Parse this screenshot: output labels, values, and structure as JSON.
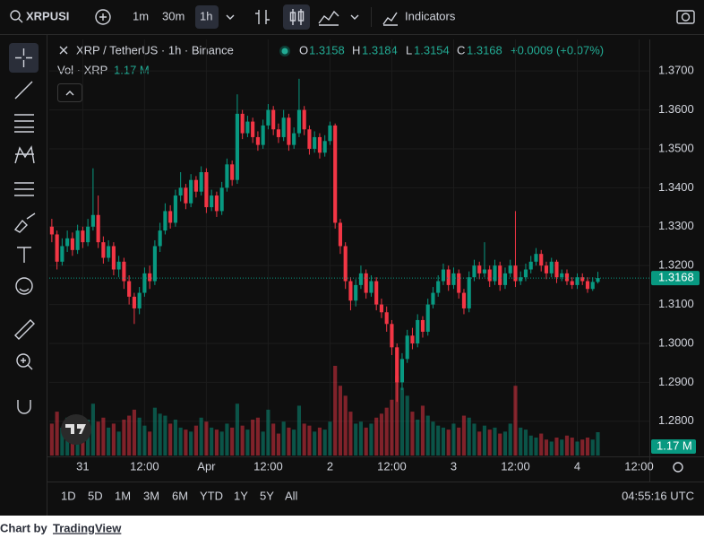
{
  "ui": {
    "symbol": "XRPUSI",
    "intervals": [
      "1m",
      "30m",
      "1h"
    ],
    "indicators": "Indicators",
    "ranges": [
      "1D",
      "5D",
      "1M",
      "3M",
      "6M",
      "YTD",
      "1Y",
      "5Y",
      "All"
    ],
    "clock": "04:55:16 UTC",
    "footer_prefix": "Chart by",
    "footer_link": "TradingView"
  },
  "chart_data": {
    "type": "candlestick",
    "title": "XRP / TetherUS · 1h · Binance",
    "ohlc_labels": [
      "O",
      "H",
      "L",
      "C"
    ],
    "change": "+0.0009 (+0.07%)",
    "volume_title": "Vol · XRP",
    "volume_label": "1.17 M",
    "up_color": "#089981",
    "down_color": "#f23645",
    "open": [
      1.33,
      1.328,
      1.321,
      1.325,
      1.327,
      1.324,
      1.329,
      1.326,
      1.33,
      1.333,
      1.326,
      1.322,
      1.325,
      1.319,
      1.321,
      1.316,
      1.312,
      1.309,
      1.313,
      1.318,
      1.316,
      1.325,
      1.329,
      1.334,
      1.331,
      1.338,
      1.34,
      1.336,
      1.342,
      1.339,
      1.344,
      1.335,
      1.338,
      1.334,
      1.34,
      1.346,
      1.342,
      1.359,
      1.354,
      1.357,
      1.353,
      1.351,
      1.356,
      1.36,
      1.355,
      1.353,
      1.358,
      1.351,
      1.354,
      1.36,
      1.355,
      1.35,
      1.353,
      1.349,
      1.352,
      1.356,
      1.331,
      1.325,
      1.316,
      1.311,
      1.315,
      1.318,
      1.313,
      1.316,
      1.31,
      1.308,
      1.305,
      1.299,
      1.29,
      1.296,
      1.302,
      1.3,
      1.306,
      1.303,
      1.31,
      1.313,
      1.316,
      1.319,
      1.315,
      1.318,
      1.313,
      1.309,
      1.317,
      1.32,
      1.318,
      1.319,
      1.316,
      1.32,
      1.315,
      1.318,
      1.32,
      1.316,
      1.317,
      1.319,
      1.321,
      1.323,
      1.32,
      1.318,
      1.321,
      1.317,
      1.318,
      1.316,
      1.315,
      1.317,
      1.316,
      1.314,
      1.3158
    ],
    "high": [
      1.332,
      1.329,
      1.327,
      1.329,
      1.3285,
      1.3305,
      1.33,
      1.332,
      1.345,
      1.338,
      1.3275,
      1.3265,
      1.326,
      1.3225,
      1.322,
      1.3175,
      1.313,
      1.3145,
      1.3195,
      1.32,
      1.3265,
      1.331,
      1.336,
      1.3355,
      1.3395,
      1.344,
      1.341,
      1.3435,
      1.343,
      1.3455,
      1.345,
      1.3395,
      1.339,
      1.3415,
      1.3475,
      1.347,
      1.364,
      1.36,
      1.3585,
      1.358,
      1.3545,
      1.3575,
      1.3615,
      1.361,
      1.3565,
      1.36,
      1.359,
      1.3555,
      1.368,
      1.361,
      1.356,
      1.3545,
      1.354,
      1.3535,
      1.357,
      1.3565,
      1.332,
      1.326,
      1.317,
      1.3165,
      1.32,
      1.319,
      1.3175,
      1.317,
      1.3115,
      1.3095,
      1.306,
      1.3,
      1.2975,
      1.3035,
      1.304,
      1.3075,
      1.307,
      1.3115,
      1.3145,
      1.3175,
      1.3205,
      1.32,
      1.3195,
      1.319,
      1.314,
      1.3185,
      1.3215,
      1.321,
      1.326,
      1.32,
      1.3215,
      1.321,
      1.3195,
      1.3215,
      1.334,
      1.3185,
      1.3205,
      1.3225,
      1.3245,
      1.324,
      1.321,
      1.322,
      1.3215,
      1.319,
      1.319,
      1.317,
      1.318,
      1.318,
      1.317,
      1.317,
      1.3184
    ],
    "low": [
      1.326,
      1.319,
      1.32,
      1.3235,
      1.3225,
      1.323,
      1.3245,
      1.325,
      1.329,
      1.3245,
      1.3205,
      1.321,
      1.3175,
      1.317,
      1.314,
      1.31,
      1.305,
      1.3075,
      1.312,
      1.314,
      1.315,
      1.3235,
      1.328,
      1.3295,
      1.33,
      1.3365,
      1.3345,
      1.335,
      1.3375,
      1.338,
      1.3335,
      1.334,
      1.3325,
      1.333,
      1.339,
      1.3405,
      1.341,
      1.3525,
      1.353,
      1.3515,
      1.3495,
      1.35,
      1.355,
      1.3535,
      1.3515,
      1.352,
      1.3495,
      1.35,
      1.353,
      1.3535,
      1.3485,
      1.349,
      1.3475,
      1.348,
      1.351,
      1.3295,
      1.323,
      1.314,
      1.3085,
      1.3095,
      1.314,
      1.3115,
      1.312,
      1.3085,
      1.3065,
      1.303,
      1.297,
      1.285,
      1.288,
      1.295,
      1.2985,
      1.299,
      1.3015,
      1.302,
      1.309,
      1.312,
      1.315,
      1.3135,
      1.314,
      1.3115,
      1.3075,
      1.308,
      1.316,
      1.3165,
      1.317,
      1.3145,
      1.315,
      1.3135,
      1.314,
      1.317,
      1.3145,
      1.315,
      1.316,
      1.318,
      1.32,
      1.3185,
      1.3165,
      1.317,
      1.3155,
      1.316,
      1.315,
      1.314,
      1.314,
      1.315,
      1.313,
      1.3135,
      1.3154
    ],
    "close": [
      1.328,
      1.321,
      1.325,
      1.327,
      1.324,
      1.329,
      1.326,
      1.33,
      1.333,
      1.326,
      1.322,
      1.325,
      1.319,
      1.321,
      1.316,
      1.312,
      1.309,
      1.313,
      1.318,
      1.316,
      1.325,
      1.329,
      1.334,
      1.331,
      1.338,
      1.34,
      1.336,
      1.342,
      1.339,
      1.344,
      1.335,
      1.338,
      1.334,
      1.34,
      1.346,
      1.342,
      1.359,
      1.354,
      1.357,
      1.353,
      1.351,
      1.356,
      1.36,
      1.355,
      1.353,
      1.358,
      1.351,
      1.354,
      1.36,
      1.355,
      1.35,
      1.353,
      1.349,
      1.352,
      1.356,
      1.331,
      1.325,
      1.316,
      1.311,
      1.315,
      1.318,
      1.313,
      1.316,
      1.31,
      1.308,
      1.305,
      1.299,
      1.29,
      1.296,
      1.302,
      1.3,
      1.306,
      1.303,
      1.31,
      1.313,
      1.316,
      1.319,
      1.315,
      1.318,
      1.313,
      1.309,
      1.317,
      1.32,
      1.318,
      1.319,
      1.316,
      1.32,
      1.315,
      1.318,
      1.32,
      1.316,
      1.317,
      1.319,
      1.321,
      1.323,
      1.32,
      1.318,
      1.321,
      1.317,
      1.318,
      1.316,
      1.315,
      1.317,
      1.316,
      1.314,
      1.3158,
      1.3168
    ],
    "volume": [
      1.6,
      2.2,
      1.4,
      1.9,
      1.3,
      1.1,
      1.5,
      1.8,
      2.6,
      1.7,
      1.9,
      1.4,
      1.6,
      1.2,
      1.8,
      2.0,
      2.3,
      1.9,
      1.5,
      1.2,
      2.4,
      2.1,
      2.0,
      1.6,
      1.8,
      1.4,
      1.3,
      1.2,
      1.5,
      1.9,
      1.7,
      1.4,
      1.3,
      1.2,
      1.6,
      1.4,
      2.6,
      1.5,
      1.3,
      1.8,
      1.9,
      1.2,
      2.3,
      1.6,
      1.1,
      1.7,
      1.4,
      1.3,
      2.5,
      1.6,
      1.5,
      1.2,
      1.4,
      1.3,
      1.7,
      4.5,
      3.5,
      3.0,
      2.2,
      1.6,
      1.7,
      1.4,
      1.6,
      1.9,
      2.1,
      2.4,
      2.8,
      4.0,
      3.4,
      3.0,
      2.2,
      1.8,
      2.5,
      2.0,
      1.7,
      1.5,
      1.4,
      1.3,
      1.6,
      1.4,
      2.0,
      1.9,
      1.6,
      1.2,
      1.5,
      1.3,
      1.4,
      1.1,
      1.2,
      1.6,
      3.5,
      1.4,
      1.3,
      1.0,
      0.9,
      1.1,
      0.8,
      0.7,
      0.9,
      0.8,
      1.0,
      0.9,
      0.7,
      0.8,
      0.9,
      0.8,
      1.17
    ],
    "xlim": [
      -0.5,
      116
    ],
    "xticks": [
      {
        "value": 6,
        "label": "31"
      },
      {
        "value": 18,
        "label": "12:00"
      },
      {
        "value": 30,
        "label": "Apr"
      },
      {
        "value": 42,
        "label": "12:00"
      },
      {
        "value": 54,
        "label": "2"
      },
      {
        "value": 66,
        "label": "12:00"
      },
      {
        "value": 78,
        "label": "3"
      },
      {
        "value": 90,
        "label": "12:00"
      },
      {
        "value": 102,
        "label": "4"
      },
      {
        "value": 114,
        "label": "12:00"
      }
    ],
    "ylim": [
      1.2712,
      1.3781
    ],
    "yticks": [
      {
        "value": 1.28,
        "label": "1.2800"
      },
      {
        "value": 1.29,
        "label": "1.2900"
      },
      {
        "value": 1.3,
        "label": "1.3000"
      },
      {
        "value": 1.31,
        "label": "1.3100"
      },
      {
        "value": 1.32,
        "label": "1.3200"
      },
      {
        "value": 1.33,
        "label": "1.3300"
      },
      {
        "value": 1.34,
        "label": "1.3400"
      },
      {
        "value": 1.35,
        "label": "1.3500"
      },
      {
        "value": 1.36,
        "label": "1.3600"
      },
      {
        "value": 1.37,
        "label": "1.3700"
      }
    ],
    "grid": true
  }
}
